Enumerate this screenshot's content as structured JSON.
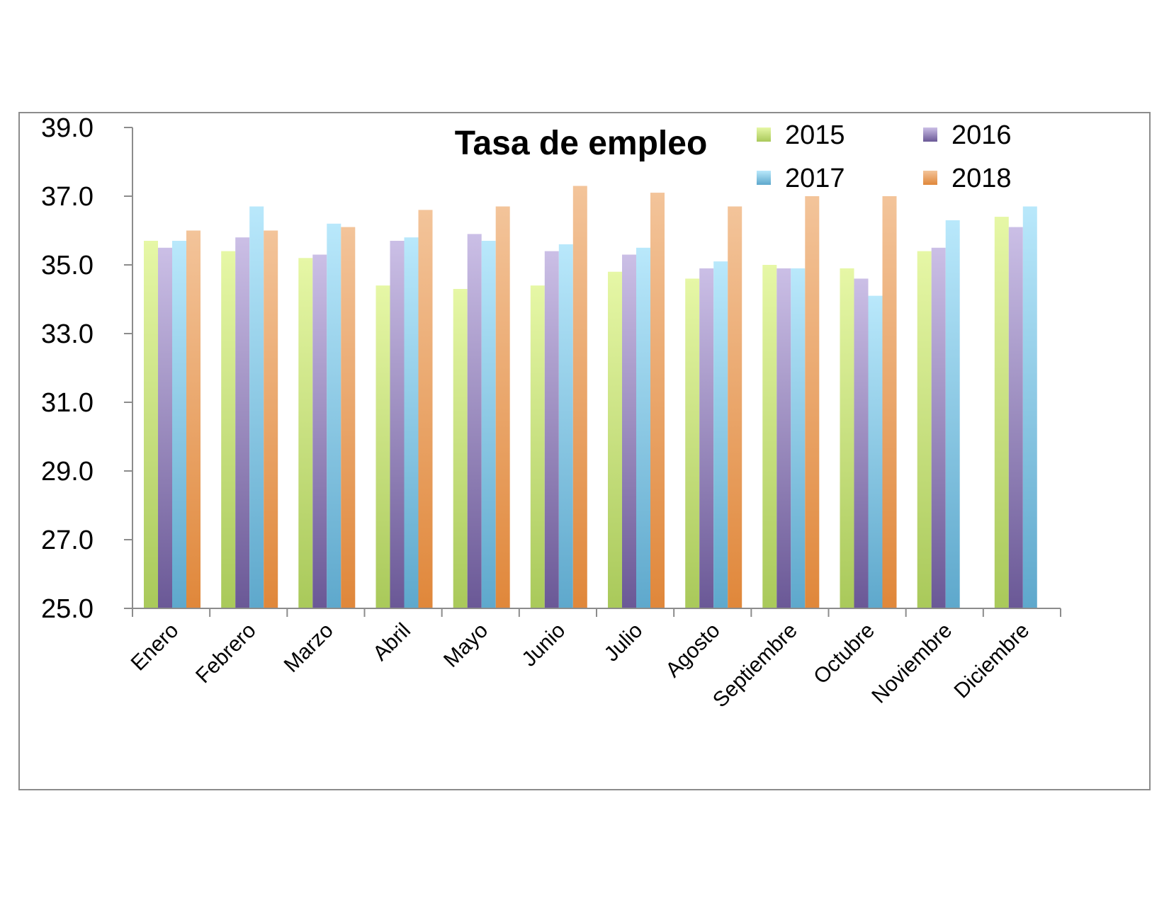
{
  "chart_data": {
    "type": "bar",
    "title": "Tasa de empleo",
    "xlabel": "",
    "ylabel": "",
    "ylim": [
      25.0,
      39.0
    ],
    "yticks": [
      "25.0",
      "27.0",
      "29.0",
      "31.0",
      "33.0",
      "35.0",
      "37.0",
      "39.0"
    ],
    "grid": false,
    "legend_position": "top-right",
    "categories": [
      "Enero",
      "Febrero",
      "Marzo",
      "Abril",
      "Mayo",
      "Junio",
      "Julio",
      "Agosto",
      "Septiembre",
      "Octubre",
      "Noviembre",
      "Diciembre"
    ],
    "series": [
      {
        "name": "2015",
        "color_top": "#e6f7a6",
        "color_bottom": "#a9c95a",
        "values": [
          35.7,
          35.4,
          35.2,
          34.4,
          34.3,
          34.4,
          34.8,
          34.6,
          35.0,
          34.9,
          35.4,
          36.4
        ]
      },
      {
        "name": "2016",
        "color_top": "#cbbfe6",
        "color_bottom": "#6a5896",
        "values": [
          35.5,
          35.8,
          35.3,
          35.7,
          35.9,
          35.4,
          35.3,
          34.9,
          34.9,
          34.6,
          35.5,
          36.1
        ]
      },
      {
        "name": "2017",
        "color_top": "#b9e8fb",
        "color_bottom": "#5ea8cc",
        "values": [
          35.7,
          36.7,
          36.2,
          35.8,
          35.7,
          35.6,
          35.5,
          35.1,
          34.9,
          34.1,
          36.3,
          36.7
        ]
      },
      {
        "name": "2018",
        "color_top": "#f3c49a",
        "color_bottom": "#e0873a",
        "values": [
          36.0,
          36.0,
          36.1,
          36.6,
          36.7,
          37.3,
          37.1,
          36.7,
          37.0,
          37.0,
          null,
          null
        ]
      }
    ]
  }
}
